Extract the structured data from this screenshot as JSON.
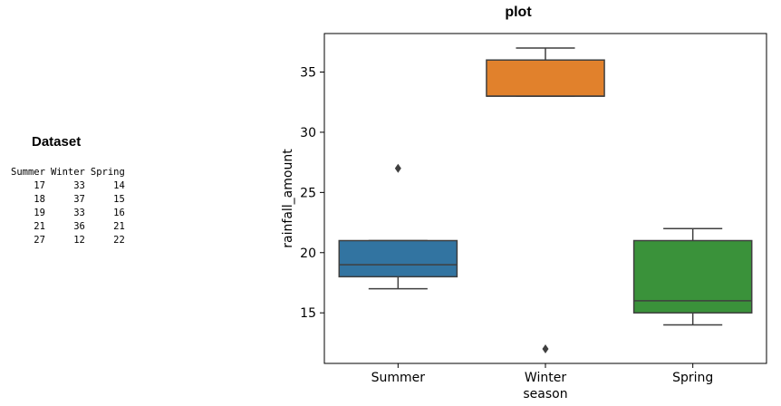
{
  "dataset": {
    "title": "Dataset",
    "columns": [
      "Summer",
      "Winter",
      "Spring"
    ],
    "rows": [
      [
        "17",
        "33",
        "14"
      ],
      [
        "18",
        "37",
        "15"
      ],
      [
        "19",
        "33",
        "16"
      ],
      [
        "21",
        "36",
        "21"
      ],
      [
        "27",
        "12",
        "22"
      ]
    ]
  },
  "chart_data": {
    "type": "box",
    "title": "plot",
    "xlabel": "season",
    "ylabel": "rainfall_amount",
    "categories": [
      "Summer",
      "Winter",
      "Spring"
    ],
    "ylim": [
      10.8,
      38.2
    ],
    "yticks": [
      15,
      20,
      25,
      30,
      35
    ],
    "grid": false,
    "boxes": [
      {
        "category": "Summer",
        "color": "#3274a1",
        "whisker_low": 17,
        "q1": 18,
        "median": 19,
        "q3": 21,
        "whisker_high": 21,
        "outliers": [
          27
        ]
      },
      {
        "category": "Winter",
        "color": "#e1812c",
        "whisker_low": 33,
        "q1": 33,
        "median": 33,
        "q3": 36,
        "whisker_high": 37,
        "outliers": [
          12
        ]
      },
      {
        "category": "Spring",
        "color": "#3a923a",
        "whisker_low": 14,
        "q1": 15,
        "median": 16,
        "q3": 21,
        "whisker_high": 22,
        "outliers": []
      }
    ]
  }
}
